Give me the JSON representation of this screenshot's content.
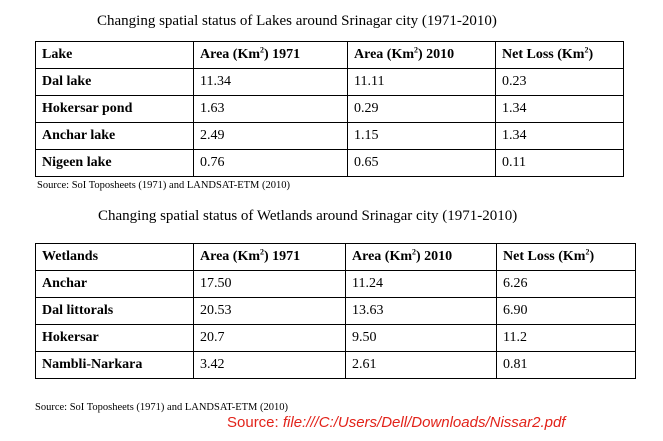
{
  "lakes": {
    "caption": "Changing spatial status of Lakes around Srinagar city (1971-2010)",
    "headers": [
      "Lake",
      "Area (Km",
      ") 1971",
      "Area (Km",
      ") 2010",
      "Net Loss (Km",
      ")"
    ],
    "sup": "2",
    "rows": [
      [
        "Dal lake",
        "11.34",
        "11.11",
        "0.23"
      ],
      [
        "Hokersar pond",
        "1.63",
        "0.29",
        "1.34"
      ],
      [
        "Anchar lake",
        "2.49",
        "1.15",
        "1.34"
      ],
      [
        "Nigeen lake",
        "0.76",
        "0.65",
        "0.11"
      ]
    ],
    "source": "Source: SoI Toposheets (1971) and LANDSAT-ETM (2010)"
  },
  "wetlands": {
    "caption": "Changing spatial status of Wetlands around Srinagar city (1971-2010)",
    "headers": [
      "Wetlands",
      "Area (Km",
      ") 1971",
      "Area (Km",
      ") 2010",
      "Net Loss (Km",
      ")"
    ],
    "sup": "2",
    "rows": [
      [
        "Anchar",
        "17.50",
        "11.24",
        "6.26"
      ],
      [
        "Dal littorals",
        "20.53",
        "13.63",
        "6.90"
      ],
      [
        "Hokersar",
        "20.7",
        "9.50",
        "11.2"
      ],
      [
        "Nambli-Narkara",
        "3.42",
        "2.61",
        "0.81"
      ]
    ],
    "source": "Source: SoI Toposheets (1971) and LANDSAT-ETM (2010)"
  },
  "web_source": {
    "label": "Source: ",
    "path": "file:///C:/Users/Dell/Downloads/Nissar2.pdf"
  }
}
